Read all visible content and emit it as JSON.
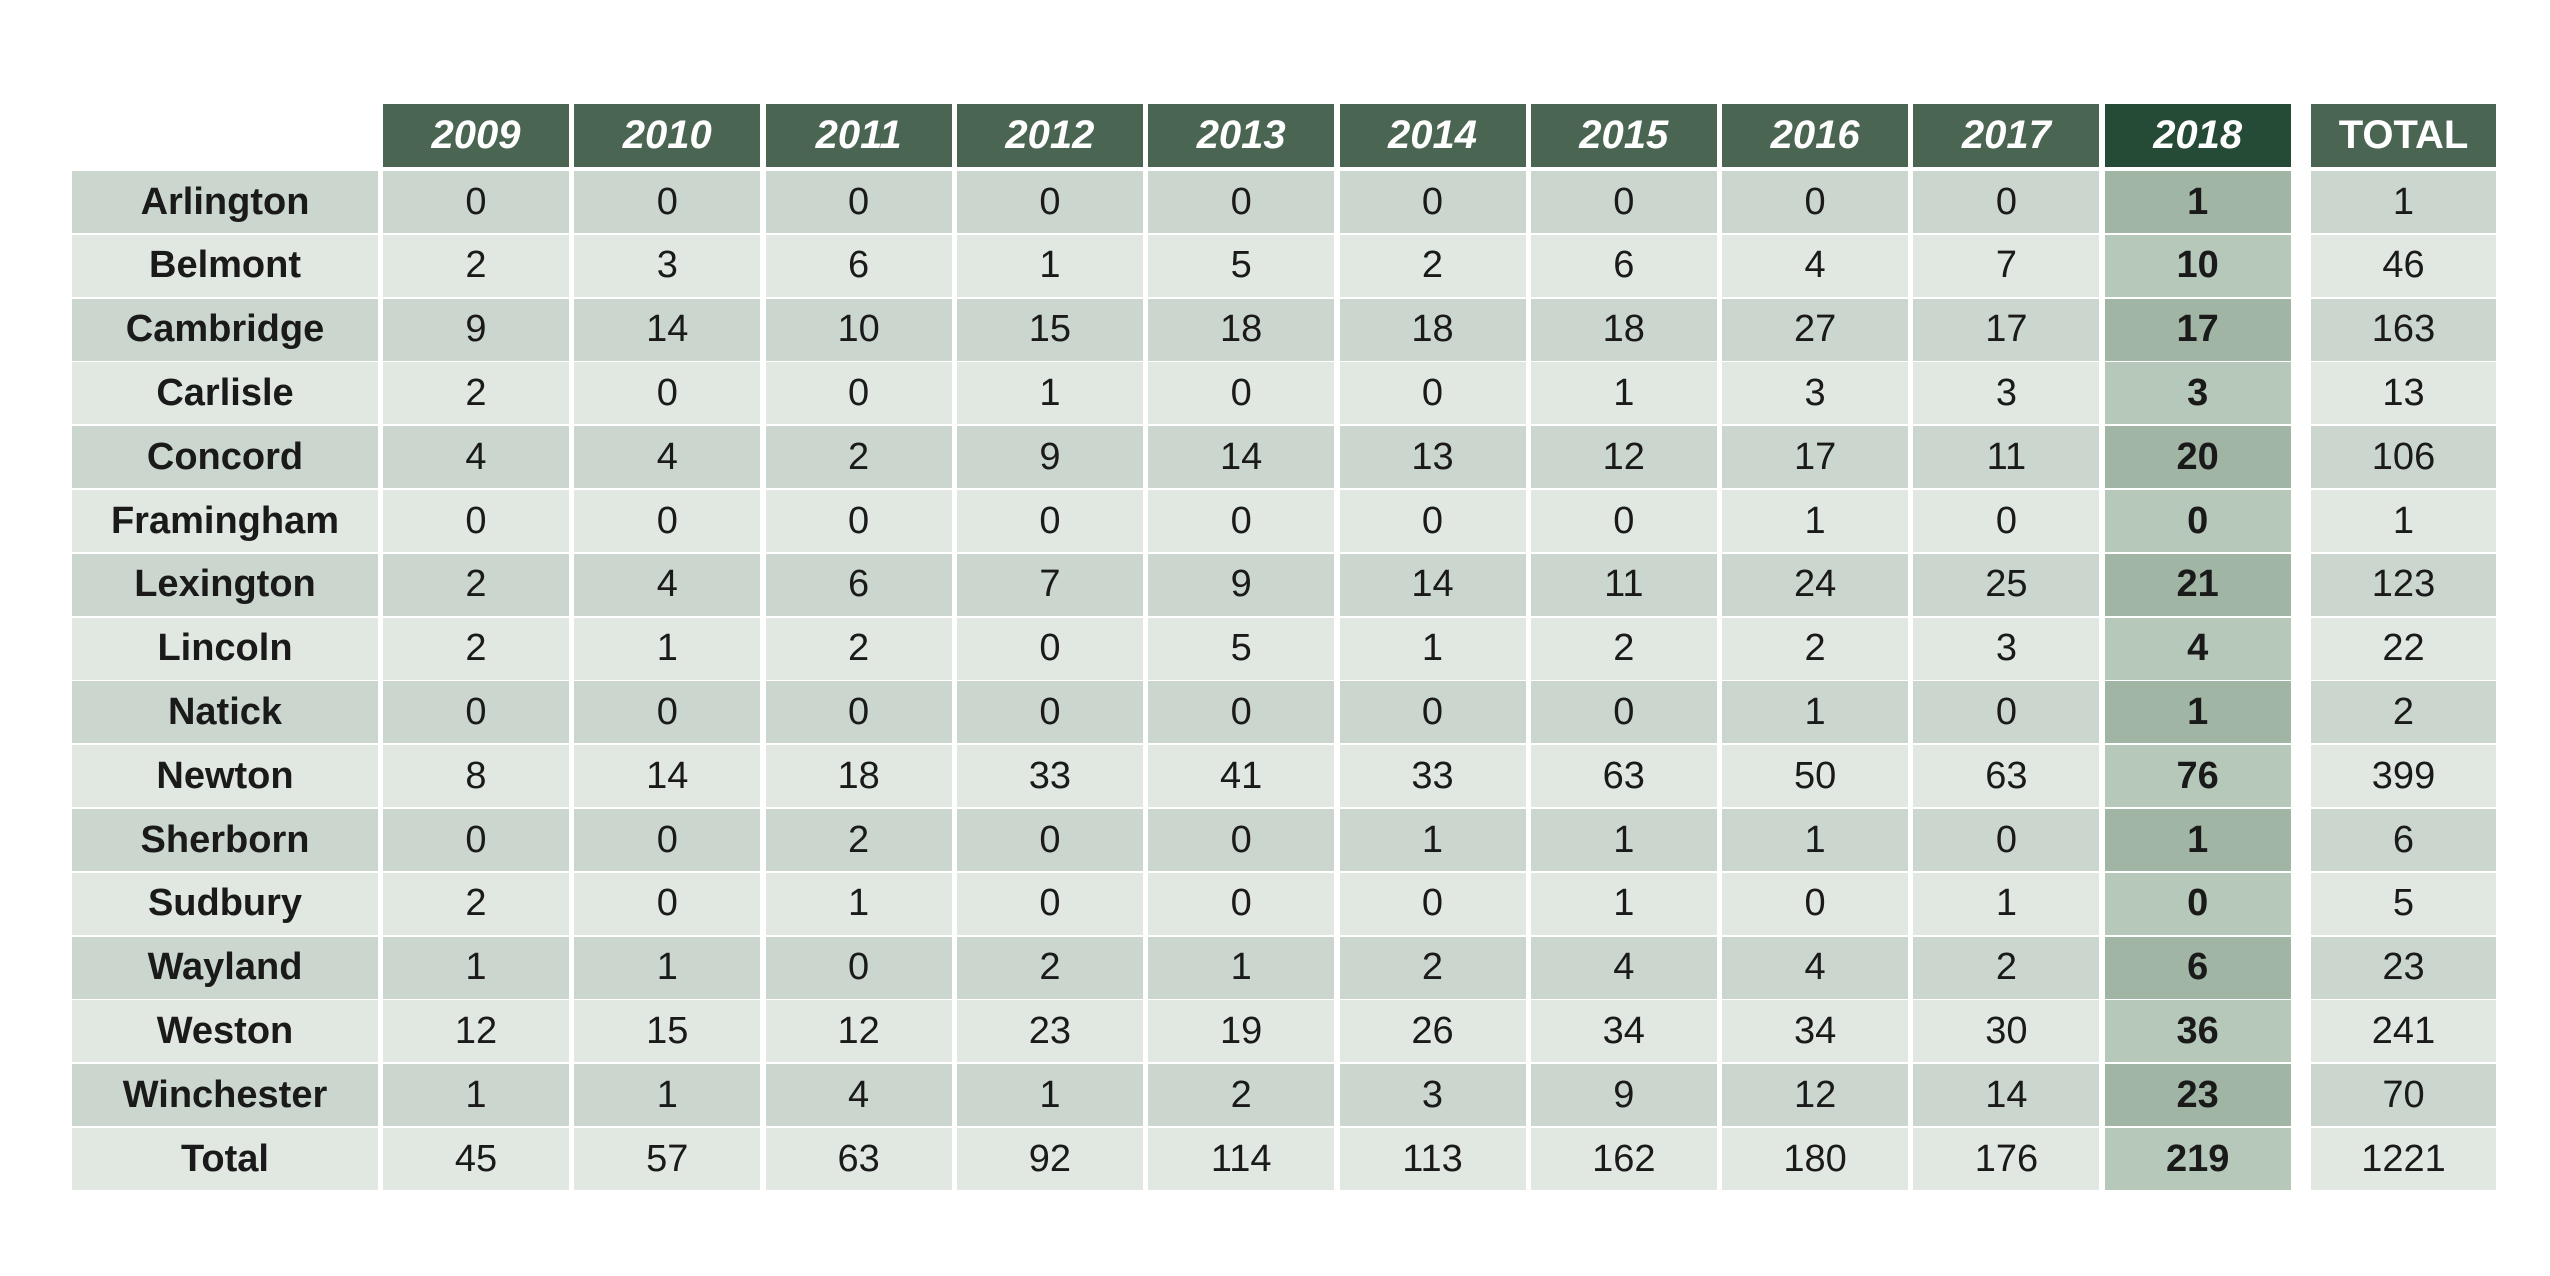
{
  "chart_data": {
    "type": "table",
    "columns": [
      "2009",
      "2010",
      "2011",
      "2012",
      "2013",
      "2014",
      "2015",
      "2016",
      "2017",
      "2018"
    ],
    "total_label": "TOTAL",
    "highlight_column": "2018",
    "rows": [
      {
        "label": "Arlington",
        "values": [
          0,
          0,
          0,
          0,
          0,
          0,
          0,
          0,
          0,
          1
        ],
        "total": 1
      },
      {
        "label": "Belmont",
        "values": [
          2,
          3,
          6,
          1,
          5,
          2,
          6,
          4,
          7,
          10
        ],
        "total": 46
      },
      {
        "label": "Cambridge",
        "values": [
          9,
          14,
          10,
          15,
          18,
          18,
          18,
          27,
          17,
          17
        ],
        "total": 163
      },
      {
        "label": "Carlisle",
        "values": [
          2,
          0,
          0,
          1,
          0,
          0,
          1,
          3,
          3,
          3
        ],
        "total": 13
      },
      {
        "label": "Concord",
        "values": [
          4,
          4,
          2,
          9,
          14,
          13,
          12,
          17,
          11,
          20
        ],
        "total": 106
      },
      {
        "label": "Framingham",
        "values": [
          0,
          0,
          0,
          0,
          0,
          0,
          0,
          1,
          0,
          0
        ],
        "total": 1
      },
      {
        "label": "Lexington",
        "values": [
          2,
          4,
          6,
          7,
          9,
          14,
          11,
          24,
          25,
          21
        ],
        "total": 123
      },
      {
        "label": "Lincoln",
        "values": [
          2,
          1,
          2,
          0,
          5,
          1,
          2,
          2,
          3,
          4
        ],
        "total": 22
      },
      {
        "label": "Natick",
        "values": [
          0,
          0,
          0,
          0,
          0,
          0,
          0,
          1,
          0,
          1
        ],
        "total": 2
      },
      {
        "label": "Newton",
        "values": [
          8,
          14,
          18,
          33,
          41,
          33,
          63,
          50,
          63,
          76
        ],
        "total": 399
      },
      {
        "label": "Sherborn",
        "values": [
          0,
          0,
          2,
          0,
          0,
          1,
          1,
          1,
          0,
          1
        ],
        "total": 6
      },
      {
        "label": "Sudbury",
        "values": [
          2,
          0,
          1,
          0,
          0,
          0,
          1,
          0,
          1,
          0
        ],
        "total": 5
      },
      {
        "label": "Wayland",
        "values": [
          1,
          1,
          0,
          2,
          1,
          2,
          4,
          4,
          2,
          6
        ],
        "total": 23
      },
      {
        "label": "Weston",
        "values": [
          12,
          15,
          12,
          23,
          19,
          26,
          34,
          34,
          30,
          36
        ],
        "total": 241
      },
      {
        "label": "Winchester",
        "values": [
          1,
          1,
          4,
          1,
          2,
          3,
          9,
          12,
          14,
          23
        ],
        "total": 70
      },
      {
        "label": "Total",
        "values": [
          45,
          57,
          63,
          92,
          114,
          113,
          162,
          180,
          176,
          219
        ],
        "total": 1221
      }
    ]
  },
  "colors": {
    "header": "#4a6552",
    "header_highlight": "#254a36",
    "row_dark": "#cbd7ce",
    "row_light": "#e1e7e1",
    "highlight_dark": "#a0b5a4",
    "highlight_light": "#b6c8b9"
  }
}
